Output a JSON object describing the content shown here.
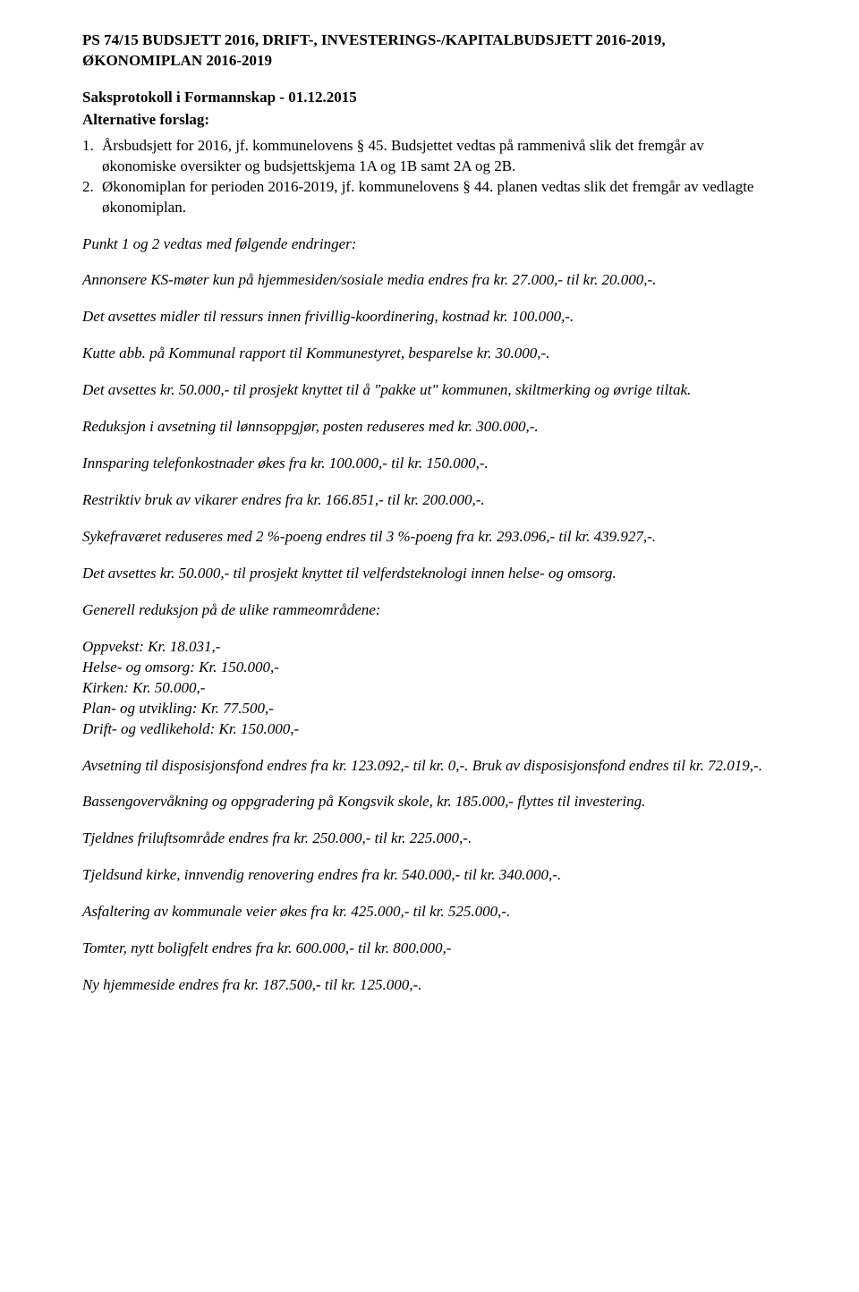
{
  "title": "PS 74/15 BUDSJETT 2016, DRIFT-, INVESTERINGS-/KAPITALBUDSJETT 2016-2019, ØKONOMIPLAN 2016-2019",
  "subheading": "Saksprotokoll i Formannskap - 01.12.2015",
  "altHeader": "Alternative forslag:",
  "item1_num": "1.",
  "item1_text": "Årsbudsjett for 2016, jf. kommunelovens § 45. Budsjettet vedtas på rammenivå slik det fremgår av økonomiske oversikter og budsjettskjema 1A og 1B samt 2A og 2B.",
  "item2_num": "2.",
  "item2_text": "Økonomiplan for perioden 2016-2019, jf. kommunelovens § 44. planen vedtas slik det fremgår av vedlagte økonomiplan.",
  "p1": "Punkt 1 og 2 vedtas med følgende endringer:",
  "p2": "Annonsere KS-møter kun på hjemmesiden/sosiale media endres fra kr. 27.000,- til kr. 20.000,-.",
  "p3": "Det avsettes midler til ressurs innen frivillig-koordinering, kostnad kr. 100.000,-.",
  "p4": "Kutte abb. på Kommunal rapport til Kommunestyret, besparelse kr. 30.000,-.",
  "p5": "Det avsettes kr. 50.000,- til prosjekt knyttet til å \"pakke ut\" kommunen, skiltmerking og øvrige tiltak.",
  "p6": "Reduksjon i avsetning til lønnsoppgjør, posten reduseres med kr. 300.000,-.",
  "p7": "Innsparing telefonkostnader økes fra kr. 100.000,- til kr. 150.000,-.",
  "p8": "Restriktiv bruk av vikarer endres fra kr. 166.851,- til kr. 200.000,-.",
  "p9": "Sykefraværet reduseres med 2 %-poeng endres til 3 %-poeng fra kr. 293.096,- til kr. 439.927,-.",
  "p10": "Det avsettes kr. 50.000,- til prosjekt knyttet til velferdsteknologi innen helse- og omsorg.",
  "p11": "Generell reduksjon på de ulike rammeområdene:",
  "red1": "Oppvekst: Kr. 18.031,-",
  "red2": "Helse- og omsorg: Kr. 150.000,-",
  "red3": "Kirken: Kr. 50.000,-",
  "red4": "Plan- og utvikling: Kr. 77.500,-",
  "red5": "Drift- og vedlikehold: Kr. 150.000,-",
  "p12": "Avsetning til disposisjonsfond endres fra kr. 123.092,- til kr. 0,-. Bruk av disposisjonsfond endres til kr. 72.019,-.",
  "p13": "Bassengovervåkning og oppgradering på Kongsvik skole, kr. 185.000,- flyttes til investering.",
  "p14": "Tjeldnes friluftsområde endres fra kr. 250.000,- til kr. 225.000,-.",
  "p15": "Tjeldsund kirke, innvendig renovering endres fra kr. 540.000,- til kr. 340.000,-.",
  "p16": "Asfaltering av kommunale veier økes fra kr. 425.000,- til kr. 525.000,-.",
  "p17": "Tomter, nytt boligfelt endres fra kr. 600.000,- til kr. 800.000,-",
  "p18": "Ny hjemmeside endres fra kr. 187.500,- til kr. 125.000,-."
}
